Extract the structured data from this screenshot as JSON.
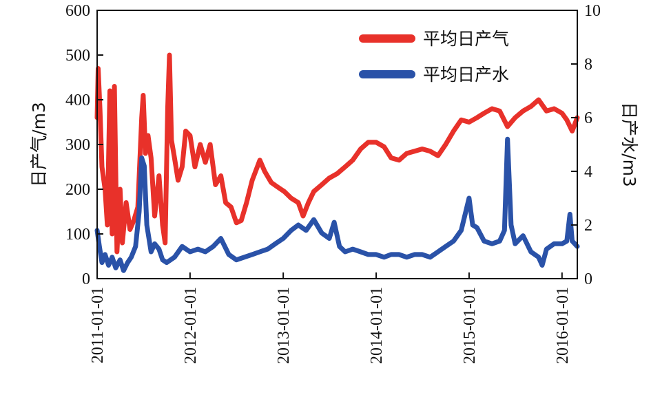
{
  "chart_data": {
    "type": "line",
    "x_axis": {
      "type": "date",
      "range": [
        "2011-01-01",
        "2016-03-01"
      ],
      "ticks": [
        "2011-01-01",
        "2012-01-01",
        "2013-01-01",
        "2014-01-01",
        "2015-01-01",
        "2016-01-01"
      ]
    },
    "y_left": {
      "label": "日产气/m3",
      "range": [
        0,
        600
      ],
      "ticks": [
        "0",
        "100",
        "200",
        "300",
        "400",
        "500",
        "600"
      ]
    },
    "y_right": {
      "label": "日产水/m3",
      "range": [
        0,
        10
      ],
      "ticks": [
        "0",
        "2",
        "4",
        "6",
        "8",
        "10"
      ]
    },
    "legend": {
      "placement": "top-right"
    },
    "series": [
      {
        "name": "平均日产气",
        "axis": "left",
        "color": "#e8312a",
        "points": [
          [
            "2011-01-01",
            360
          ],
          [
            "2011-01-05",
            470
          ],
          [
            "2011-01-12",
            380
          ],
          [
            "2011-01-20",
            250
          ],
          [
            "2011-02-01",
            200
          ],
          [
            "2011-02-10",
            120
          ],
          [
            "2011-02-20",
            420
          ],
          [
            "2011-03-01",
            100
          ],
          [
            "2011-03-10",
            430
          ],
          [
            "2011-03-20",
            60
          ],
          [
            "2011-04-01",
            200
          ],
          [
            "2011-04-10",
            80
          ],
          [
            "2011-04-25",
            170
          ],
          [
            "2011-05-10",
            110
          ],
          [
            "2011-05-25",
            130
          ],
          [
            "2011-06-10",
            160
          ],
          [
            "2011-06-25",
            360
          ],
          [
            "2011-07-01",
            410
          ],
          [
            "2011-07-10",
            280
          ],
          [
            "2011-07-20",
            320
          ],
          [
            "2011-08-01",
            270
          ],
          [
            "2011-08-15",
            140
          ],
          [
            "2011-09-01",
            230
          ],
          [
            "2011-09-15",
            120
          ],
          [
            "2011-09-25",
            80
          ],
          [
            "2011-10-05",
            380
          ],
          [
            "2011-10-12",
            500
          ],
          [
            "2011-10-20",
            310
          ],
          [
            "2011-11-01",
            270
          ],
          [
            "2011-11-15",
            220
          ],
          [
            "2011-12-01",
            250
          ],
          [
            "2011-12-15",
            330
          ],
          [
            "2012-01-01",
            320
          ],
          [
            "2012-01-20",
            250
          ],
          [
            "2012-02-10",
            300
          ],
          [
            "2012-03-01",
            260
          ],
          [
            "2012-03-20",
            300
          ],
          [
            "2012-04-10",
            210
          ],
          [
            "2012-05-01",
            230
          ],
          [
            "2012-05-20",
            170
          ],
          [
            "2012-06-10",
            160
          ],
          [
            "2012-07-01",
            125
          ],
          [
            "2012-07-20",
            130
          ],
          [
            "2012-08-10",
            170
          ],
          [
            "2012-09-01",
            220
          ],
          [
            "2012-10-01",
            265
          ],
          [
            "2012-10-20",
            240
          ],
          [
            "2012-11-15",
            215
          ],
          [
            "2012-12-10",
            205
          ],
          [
            "2013-01-05",
            195
          ],
          [
            "2013-02-01",
            180
          ],
          [
            "2013-03-01",
            170
          ],
          [
            "2013-03-20",
            140
          ],
          [
            "2013-04-10",
            170
          ],
          [
            "2013-05-01",
            195
          ],
          [
            "2013-06-01",
            210
          ],
          [
            "2013-07-01",
            225
          ],
          [
            "2013-08-01",
            235
          ],
          [
            "2013-09-01",
            250
          ],
          [
            "2013-10-01",
            265
          ],
          [
            "2013-11-01",
            290
          ],
          [
            "2013-12-01",
            305
          ],
          [
            "2014-01-01",
            305
          ],
          [
            "2014-02-01",
            295
          ],
          [
            "2014-03-01",
            270
          ],
          [
            "2014-04-01",
            265
          ],
          [
            "2014-05-01",
            280
          ],
          [
            "2014-06-01",
            285
          ],
          [
            "2014-07-01",
            290
          ],
          [
            "2014-08-01",
            285
          ],
          [
            "2014-09-01",
            275
          ],
          [
            "2014-10-01",
            300
          ],
          [
            "2014-11-01",
            330
          ],
          [
            "2014-12-01",
            355
          ],
          [
            "2015-01-01",
            350
          ],
          [
            "2015-02-01",
            360
          ],
          [
            "2015-03-01",
            370
          ],
          [
            "2015-04-01",
            380
          ],
          [
            "2015-05-01",
            375
          ],
          [
            "2015-06-01",
            340
          ],
          [
            "2015-07-01",
            360
          ],
          [
            "2015-08-01",
            375
          ],
          [
            "2015-09-01",
            385
          ],
          [
            "2015-10-01",
            400
          ],
          [
            "2015-11-01",
            375
          ],
          [
            "2015-12-01",
            380
          ],
          [
            "2016-01-01",
            370
          ],
          [
            "2016-01-20",
            355
          ],
          [
            "2016-02-10",
            330
          ],
          [
            "2016-03-01",
            360
          ]
        ]
      },
      {
        "name": "平均日产水",
        "axis": "right",
        "color": "#2a52a8",
        "points": [
          [
            "2011-01-01",
            1.8
          ],
          [
            "2011-01-10",
            1.2
          ],
          [
            "2011-01-20",
            0.6
          ],
          [
            "2011-02-01",
            0.9
          ],
          [
            "2011-02-15",
            0.5
          ],
          [
            "2011-03-01",
            0.8
          ],
          [
            "2011-03-15",
            0.4
          ],
          [
            "2011-04-01",
            0.7
          ],
          [
            "2011-04-15",
            0.3
          ],
          [
            "2011-05-01",
            0.6
          ],
          [
            "2011-05-15",
            0.8
          ],
          [
            "2011-06-01",
            1.2
          ],
          [
            "2011-06-15",
            2.5
          ],
          [
            "2011-06-25",
            4.5
          ],
          [
            "2011-07-05",
            4.2
          ],
          [
            "2011-07-15",
            2.0
          ],
          [
            "2011-08-01",
            1.0
          ],
          [
            "2011-08-15",
            1.3
          ],
          [
            "2011-09-01",
            1.1
          ],
          [
            "2011-09-15",
            0.7
          ],
          [
            "2011-10-01",
            0.6
          ],
          [
            "2011-11-01",
            0.8
          ],
          [
            "2011-12-01",
            1.2
          ],
          [
            "2012-01-01",
            1.0
          ],
          [
            "2012-02-01",
            1.1
          ],
          [
            "2012-03-01",
            1.0
          ],
          [
            "2012-04-01",
            1.2
          ],
          [
            "2012-05-01",
            1.5
          ],
          [
            "2012-06-01",
            0.9
          ],
          [
            "2012-07-01",
            0.7
          ],
          [
            "2012-08-01",
            0.8
          ],
          [
            "2012-09-01",
            0.9
          ],
          [
            "2012-10-01",
            1.0
          ],
          [
            "2012-11-01",
            1.1
          ],
          [
            "2012-12-01",
            1.3
          ],
          [
            "2013-01-01",
            1.5
          ],
          [
            "2013-02-01",
            1.8
          ],
          [
            "2013-03-01",
            2.0
          ],
          [
            "2013-04-01",
            1.8
          ],
          [
            "2013-05-01",
            2.2
          ],
          [
            "2013-06-01",
            1.7
          ],
          [
            "2013-07-01",
            1.5
          ],
          [
            "2013-07-20",
            2.1
          ],
          [
            "2013-08-10",
            1.2
          ],
          [
            "2013-09-01",
            1.0
          ],
          [
            "2013-10-01",
            1.1
          ],
          [
            "2013-11-01",
            1.0
          ],
          [
            "2013-12-01",
            0.9
          ],
          [
            "2014-01-01",
            0.9
          ],
          [
            "2014-02-01",
            0.8
          ],
          [
            "2014-03-01",
            0.9
          ],
          [
            "2014-04-01",
            0.9
          ],
          [
            "2014-05-01",
            0.8
          ],
          [
            "2014-06-01",
            0.9
          ],
          [
            "2014-07-01",
            0.9
          ],
          [
            "2014-08-01",
            0.8
          ],
          [
            "2014-09-01",
            1.0
          ],
          [
            "2014-10-01",
            1.2
          ],
          [
            "2014-11-01",
            1.4
          ],
          [
            "2014-12-01",
            1.8
          ],
          [
            "2015-01-01",
            3.0
          ],
          [
            "2015-01-15",
            2.0
          ],
          [
            "2015-02-01",
            1.9
          ],
          [
            "2015-03-01",
            1.4
          ],
          [
            "2015-04-01",
            1.3
          ],
          [
            "2015-05-01",
            1.4
          ],
          [
            "2015-05-20",
            1.8
          ],
          [
            "2015-06-01",
            5.2
          ],
          [
            "2015-06-15",
            2.0
          ],
          [
            "2015-07-01",
            1.3
          ],
          [
            "2015-08-01",
            1.6
          ],
          [
            "2015-09-01",
            1.0
          ],
          [
            "2015-10-01",
            0.8
          ],
          [
            "2015-10-15",
            0.5
          ],
          [
            "2015-11-01",
            1.1
          ],
          [
            "2015-12-01",
            1.3
          ],
          [
            "2016-01-01",
            1.3
          ],
          [
            "2016-01-20",
            1.4
          ],
          [
            "2016-02-01",
            2.4
          ],
          [
            "2016-02-10",
            1.4
          ],
          [
            "2016-03-01",
            1.2
          ]
        ]
      }
    ]
  }
}
